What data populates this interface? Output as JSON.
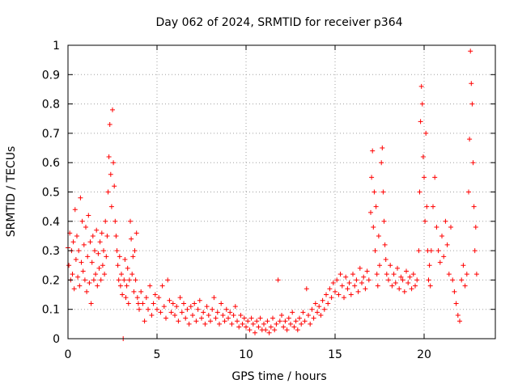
{
  "chart_data": {
    "type": "scatter",
    "title": "Day 062 of 2024, SRMTID for receiver p364",
    "xlabel": "GPS time / hours",
    "ylabel": "SRMTID / TECUs",
    "xlim": [
      0,
      24
    ],
    "ylim": [
      0,
      1
    ],
    "x_ticks": [
      0,
      5,
      10,
      15,
      20
    ],
    "x_tick_labels": [
      "0",
      "5",
      "10",
      "15",
      "20"
    ],
    "y_ticks": [
      0,
      0.1,
      0.2,
      0.3,
      0.4,
      0.5,
      0.6,
      0.7,
      0.8,
      0.9,
      1
    ],
    "y_tick_labels": [
      "0",
      "0.1",
      "0.2",
      "0.3",
      "0.4",
      "0.5",
      "0.6",
      "0.7",
      "0.8",
      "0.9",
      "1"
    ],
    "grid": true,
    "marker": "+",
    "color": "#ff0000",
    "series": [
      {
        "name": "p364",
        "points": [
          [
            0.0,
            0.31
          ],
          [
            0.05,
            0.25
          ],
          [
            0.1,
            0.36
          ],
          [
            0.15,
            0.2
          ],
          [
            0.2,
            0.3
          ],
          [
            0.25,
            0.22
          ],
          [
            0.3,
            0.33
          ],
          [
            0.35,
            0.17
          ],
          [
            0.4,
            0.44
          ],
          [
            0.45,
            0.27
          ],
          [
            0.5,
            0.35
          ],
          [
            0.55,
            0.21
          ],
          [
            0.6,
            0.3
          ],
          [
            0.65,
            0.18
          ],
          [
            0.7,
            0.48
          ],
          [
            0.75,
            0.26
          ],
          [
            0.8,
            0.4
          ],
          [
            0.85,
            0.23
          ],
          [
            0.9,
            0.32
          ],
          [
            0.95,
            0.2
          ],
          [
            1.0,
            0.38
          ],
          [
            1.05,
            0.16
          ],
          [
            1.1,
            0.28
          ],
          [
            1.15,
            0.42
          ],
          [
            1.2,
            0.19
          ],
          [
            1.25,
            0.33
          ],
          [
            1.3,
            0.12
          ],
          [
            1.35,
            0.26
          ],
          [
            1.4,
            0.35
          ],
          [
            1.45,
            0.2
          ],
          [
            1.5,
            0.3
          ],
          [
            1.55,
            0.22
          ],
          [
            1.6,
            0.37
          ],
          [
            1.65,
            0.18
          ],
          [
            1.7,
            0.29
          ],
          [
            1.75,
            0.24
          ],
          [
            1.8,
            0.33
          ],
          [
            1.85,
            0.2
          ],
          [
            1.9,
            0.36
          ],
          [
            1.95,
            0.25
          ],
          [
            2.0,
            0.3
          ],
          [
            2.05,
            0.22
          ],
          [
            2.1,
            0.4
          ],
          [
            2.15,
            0.28
          ],
          [
            2.2,
            0.35
          ],
          [
            2.25,
            0.5
          ],
          [
            2.3,
            0.62
          ],
          [
            2.35,
            0.73
          ],
          [
            2.4,
            0.56
          ],
          [
            2.45,
            0.45
          ],
          [
            2.5,
            0.78
          ],
          [
            2.55,
            0.6
          ],
          [
            2.6,
            0.52
          ],
          [
            2.65,
            0.4
          ],
          [
            2.7,
            0.35
          ],
          [
            2.75,
            0.3
          ],
          [
            2.8,
            0.25
          ],
          [
            2.85,
            0.2
          ],
          [
            2.9,
            0.28
          ],
          [
            2.95,
            0.18
          ],
          [
            3.0,
            0.22
          ],
          [
            3.05,
            0.15
          ],
          [
            3.1,
            0.0
          ],
          [
            3.15,
            0.2
          ],
          [
            3.2,
            0.27
          ],
          [
            3.25,
            0.14
          ],
          [
            3.3,
            0.18
          ],
          [
            3.35,
            0.24
          ],
          [
            3.4,
            0.12
          ],
          [
            3.45,
            0.2
          ],
          [
            3.5,
            0.4
          ],
          [
            3.55,
            0.34
          ],
          [
            3.6,
            0.22
          ],
          [
            3.65,
            0.28
          ],
          [
            3.7,
            0.16
          ],
          [
            3.75,
            0.3
          ],
          [
            3.8,
            0.2
          ],
          [
            3.85,
            0.36
          ],
          [
            3.9,
            0.14
          ],
          [
            3.95,
            0.12
          ],
          [
            4.0,
            0.1
          ],
          [
            4.1,
            0.16
          ],
          [
            4.2,
            0.12
          ],
          [
            4.3,
            0.06
          ],
          [
            4.4,
            0.14
          ],
          [
            4.5,
            0.1
          ],
          [
            4.6,
            0.18
          ],
          [
            4.7,
            0.08
          ],
          [
            4.8,
            0.12
          ],
          [
            4.9,
            0.15
          ],
          [
            5.0,
            0.1
          ],
          [
            5.1,
            0.14
          ],
          [
            5.2,
            0.09
          ],
          [
            5.3,
            0.18
          ],
          [
            5.4,
            0.11
          ],
          [
            5.5,
            0.07
          ],
          [
            5.6,
            0.2
          ],
          [
            5.7,
            0.13
          ],
          [
            5.8,
            0.09
          ],
          [
            5.9,
            0.12
          ],
          [
            6.0,
            0.08
          ],
          [
            6.1,
            0.11
          ],
          [
            6.2,
            0.06
          ],
          [
            6.3,
            0.14
          ],
          [
            6.4,
            0.09
          ],
          [
            6.5,
            0.12
          ],
          [
            6.6,
            0.07
          ],
          [
            6.7,
            0.1
          ],
          [
            6.8,
            0.05
          ],
          [
            6.9,
            0.11
          ],
          [
            7.0,
            0.08
          ],
          [
            7.1,
            0.12
          ],
          [
            7.2,
            0.06
          ],
          [
            7.3,
            0.1
          ],
          [
            7.4,
            0.13
          ],
          [
            7.5,
            0.07
          ],
          [
            7.6,
            0.09
          ],
          [
            7.7,
            0.05
          ],
          [
            7.8,
            0.11
          ],
          [
            7.9,
            0.08
          ],
          [
            8.0,
            0.06
          ],
          [
            8.1,
            0.1
          ],
          [
            8.2,
            0.14
          ],
          [
            8.3,
            0.07
          ],
          [
            8.4,
            0.09
          ],
          [
            8.5,
            0.05
          ],
          [
            8.6,
            0.12
          ],
          [
            8.7,
            0.08
          ],
          [
            8.8,
            0.06
          ],
          [
            8.9,
            0.1
          ],
          [
            9.0,
            0.07
          ],
          [
            9.1,
            0.09
          ],
          [
            9.2,
            0.05
          ],
          [
            9.3,
            0.08
          ],
          [
            9.4,
            0.11
          ],
          [
            9.5,
            0.06
          ],
          [
            9.6,
            0.04
          ],
          [
            9.7,
            0.08
          ],
          [
            9.8,
            0.05
          ],
          [
            9.9,
            0.07
          ],
          [
            10.0,
            0.04
          ],
          [
            10.1,
            0.06
          ],
          [
            10.2,
            0.03
          ],
          [
            10.3,
            0.07
          ],
          [
            10.4,
            0.05
          ],
          [
            10.5,
            0.02
          ],
          [
            10.6,
            0.06
          ],
          [
            10.7,
            0.04
          ],
          [
            10.8,
            0.07
          ],
          [
            10.9,
            0.03
          ],
          [
            11.0,
            0.05
          ],
          [
            11.1,
            0.03
          ],
          [
            11.2,
            0.06
          ],
          [
            11.3,
            0.02
          ],
          [
            11.4,
            0.04
          ],
          [
            11.5,
            0.07
          ],
          [
            11.6,
            0.03
          ],
          [
            11.7,
            0.05
          ],
          [
            11.8,
            0.2
          ],
          [
            11.9,
            0.06
          ],
          [
            12.0,
            0.08
          ],
          [
            12.1,
            0.04
          ],
          [
            12.2,
            0.06
          ],
          [
            12.3,
            0.03
          ],
          [
            12.4,
            0.07
          ],
          [
            12.5,
            0.05
          ],
          [
            12.6,
            0.09
          ],
          [
            12.7,
            0.04
          ],
          [
            12.8,
            0.06
          ],
          [
            12.9,
            0.03
          ],
          [
            13.0,
            0.07
          ],
          [
            13.1,
            0.05
          ],
          [
            13.2,
            0.09
          ],
          [
            13.3,
            0.06
          ],
          [
            13.4,
            0.17
          ],
          [
            13.5,
            0.08
          ],
          [
            13.6,
            0.05
          ],
          [
            13.7,
            0.1
          ],
          [
            13.8,
            0.07
          ],
          [
            13.9,
            0.12
          ],
          [
            14.0,
            0.09
          ],
          [
            14.1,
            0.11
          ],
          [
            14.2,
            0.08
          ],
          [
            14.3,
            0.13
          ],
          [
            14.4,
            0.1
          ],
          [
            14.5,
            0.15
          ],
          [
            14.6,
            0.12
          ],
          [
            14.7,
            0.17
          ],
          [
            14.8,
            0.14
          ],
          [
            14.9,
            0.19
          ],
          [
            15.0,
            0.16
          ],
          [
            15.1,
            0.2
          ],
          [
            15.2,
            0.15
          ],
          [
            15.3,
            0.22
          ],
          [
            15.4,
            0.18
          ],
          [
            15.5,
            0.14
          ],
          [
            15.6,
            0.21
          ],
          [
            15.7,
            0.17
          ],
          [
            15.8,
            0.19
          ],
          [
            15.9,
            0.15
          ],
          [
            16.0,
            0.22
          ],
          [
            16.1,
            0.18
          ],
          [
            16.2,
            0.2
          ],
          [
            16.3,
            0.16
          ],
          [
            16.4,
            0.24
          ],
          [
            16.5,
            0.19
          ],
          [
            16.6,
            0.21
          ],
          [
            16.7,
            0.17
          ],
          [
            16.8,
            0.23
          ],
          [
            16.9,
            0.2
          ],
          [
            17.0,
            0.43
          ],
          [
            17.05,
            0.55
          ],
          [
            17.1,
            0.64
          ],
          [
            17.15,
            0.38
          ],
          [
            17.2,
            0.5
          ],
          [
            17.25,
            0.3
          ],
          [
            17.3,
            0.45
          ],
          [
            17.35,
            0.22
          ],
          [
            17.4,
            0.18
          ],
          [
            17.45,
            0.35
          ],
          [
            17.5,
            0.25
          ],
          [
            17.6,
            0.6
          ],
          [
            17.65,
            0.65
          ],
          [
            17.7,
            0.5
          ],
          [
            17.75,
            0.4
          ],
          [
            17.8,
            0.32
          ],
          [
            17.85,
            0.27
          ],
          [
            17.9,
            0.22
          ],
          [
            18.0,
            0.2
          ],
          [
            18.1,
            0.25
          ],
          [
            18.2,
            0.18
          ],
          [
            18.3,
            0.22
          ],
          [
            18.4,
            0.19
          ],
          [
            18.5,
            0.24
          ],
          [
            18.6,
            0.17
          ],
          [
            18.7,
            0.21
          ],
          [
            18.8,
            0.2
          ],
          [
            18.9,
            0.16
          ],
          [
            19.0,
            0.23
          ],
          [
            19.1,
            0.19
          ],
          [
            19.2,
            0.21
          ],
          [
            19.3,
            0.17
          ],
          [
            19.4,
            0.22
          ],
          [
            19.5,
            0.18
          ],
          [
            19.6,
            0.2
          ],
          [
            19.7,
            0.3
          ],
          [
            19.75,
            0.5
          ],
          [
            19.8,
            0.74
          ],
          [
            19.85,
            0.86
          ],
          [
            19.9,
            0.8
          ],
          [
            19.95,
            0.62
          ],
          [
            20.0,
            0.55
          ],
          [
            20.05,
            0.4
          ],
          [
            20.1,
            0.7
          ],
          [
            20.15,
            0.45
          ],
          [
            20.2,
            0.3
          ],
          [
            20.25,
            0.2
          ],
          [
            20.3,
            0.25
          ],
          [
            20.35,
            0.18
          ],
          [
            20.4,
            0.3
          ],
          [
            20.5,
            0.45
          ],
          [
            20.6,
            0.55
          ],
          [
            20.7,
            0.38
          ],
          [
            20.8,
            0.3
          ],
          [
            20.9,
            0.26
          ],
          [
            21.0,
            0.35
          ],
          [
            21.1,
            0.28
          ],
          [
            21.2,
            0.4
          ],
          [
            21.3,
            0.32
          ],
          [
            21.4,
            0.22
          ],
          [
            21.5,
            0.38
          ],
          [
            21.6,
            0.2
          ],
          [
            21.7,
            0.16
          ],
          [
            21.8,
            0.12
          ],
          [
            21.9,
            0.08
          ],
          [
            22.0,
            0.06
          ],
          [
            22.1,
            0.2
          ],
          [
            22.2,
            0.25
          ],
          [
            22.3,
            0.18
          ],
          [
            22.4,
            0.22
          ],
          [
            22.5,
            0.5
          ],
          [
            22.55,
            0.68
          ],
          [
            22.6,
            0.98
          ],
          [
            22.65,
            0.87
          ],
          [
            22.7,
            0.8
          ],
          [
            22.75,
            0.6
          ],
          [
            22.8,
            0.45
          ],
          [
            22.85,
            0.3
          ],
          [
            22.9,
            0.38
          ],
          [
            22.95,
            0.22
          ]
        ]
      }
    ]
  }
}
